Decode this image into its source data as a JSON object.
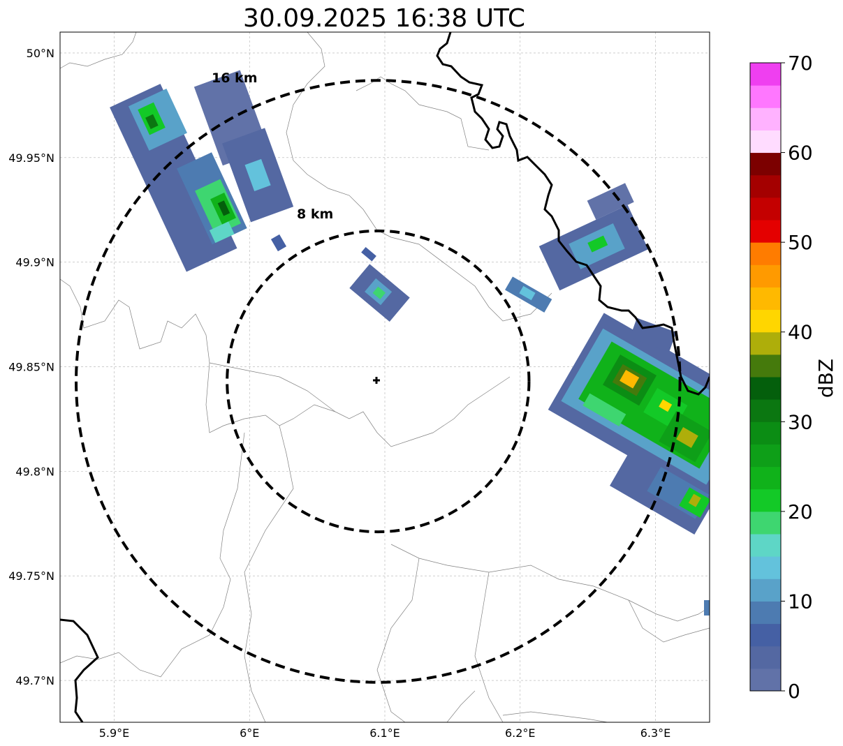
{
  "title": "30.09.2025 16:38 UTC",
  "map": {
    "lon_range": [
      5.86,
      6.34
    ],
    "lat_range": [
      49.68,
      50.01
    ],
    "x_ticks": [
      {
        "value": 5.9,
        "label": "5.9°E"
      },
      {
        "value": 6.0,
        "label": "6°E"
      },
      {
        "value": 6.1,
        "label": "6.1°E"
      },
      {
        "value": 6.2,
        "label": "6.2°E"
      },
      {
        "value": 6.3,
        "label": "6.3°E"
      }
    ],
    "y_ticks": [
      {
        "value": 50.0,
        "label": "50°N"
      },
      {
        "value": 49.95,
        "label": "49.95°N"
      },
      {
        "value": 49.9,
        "label": "49.9°N"
      },
      {
        "value": 49.85,
        "label": "49.85°N"
      },
      {
        "value": 49.8,
        "label": "49.8°N"
      },
      {
        "value": 49.75,
        "label": "49.75°N"
      },
      {
        "value": 49.7,
        "label": "49.7°N"
      }
    ],
    "gridlines": true,
    "radar_site": {
      "lon": 6.095,
      "lat": 49.843
    },
    "range_rings": [
      {
        "radius_km": 8,
        "label": "8 km"
      },
      {
        "radius_km": 16,
        "label": "16 km"
      }
    ]
  },
  "colorbar": {
    "label": "dBZ",
    "min": 0,
    "max": 70,
    "ticks": [
      {
        "value": 0,
        "label": "0"
      },
      {
        "value": 10,
        "label": "10"
      },
      {
        "value": 20,
        "label": "20"
      },
      {
        "value": 30,
        "label": "30"
      },
      {
        "value": 40,
        "label": "40"
      },
      {
        "value": 50,
        "label": "50"
      },
      {
        "value": 60,
        "label": "60"
      },
      {
        "value": 70,
        "label": "70"
      }
    ],
    "colors": [
      "#6172a8",
      "#5468a2",
      "#4560a4",
      "#4d7bb1",
      "#59a2c9",
      "#63c2dc",
      "#5ed6c6",
      "#3ed670",
      "#13c927",
      "#10b21a",
      "#0e9f18",
      "#0b8d14",
      "#0b7711",
      "#045f0c",
      "#457a0c",
      "#aeae0a",
      "#ffd600",
      "#ffb900",
      "#ff9a00",
      "#ff7c00",
      "#e40000",
      "#c40000",
      "#a40000",
      "#7c0000",
      "#ffdcff",
      "#ffb2ff",
      "#ff77ff",
      "#ef3ff0"
    ]
  }
}
